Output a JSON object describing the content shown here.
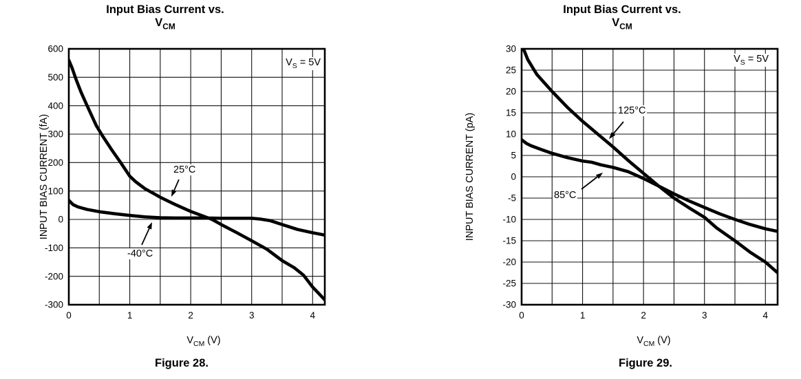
{
  "page": {
    "background": "#ffffff",
    "ink": "#000000"
  },
  "labels": {
    "vcm_base": "V",
    "vcm_sub": "CM",
    "vcm_unit_suffix": " (V)",
    "vs_base": "V",
    "vs_sub": "S",
    "vs_rest": " = 5V"
  },
  "chart_data": [
    {
      "type": "line",
      "figure": "Figure 28.",
      "title": "Input Bias Current vs. VCM",
      "title_lines": [
        "Input Bias Current vs.",
        "VCM"
      ],
      "xlabel": "VCM (V)",
      "ylabel": "INPUT BIAS CURRENT (fA)",
      "annotation": "VS = 5V",
      "grid": true,
      "legend": "inline-labels-with-arrows",
      "xlim": [
        0,
        4.2
      ],
      "ylim": [
        -300,
        600
      ],
      "x_gridline_step": 0.5,
      "x_tick_labels": [
        0,
        1,
        2,
        3,
        4
      ],
      "y_ticks": [
        600,
        500,
        400,
        300,
        200,
        100,
        0,
        -100,
        -200,
        -300
      ],
      "series": [
        {
          "name": "25c",
          "label": "25°C",
          "points": [
            [
              0,
              560
            ],
            [
              0.05,
              535
            ],
            [
              0.12,
              492
            ],
            [
              0.2,
              448
            ],
            [
              0.3,
              400
            ],
            [
              0.45,
              330
            ],
            [
              0.55,
              295
            ],
            [
              0.7,
              246
            ],
            [
              0.85,
              200
            ],
            [
              1.0,
              152
            ],
            [
              1.1,
              132
            ],
            [
              1.25,
              108
            ],
            [
              1.4,
              90
            ],
            [
              1.5,
              78
            ],
            [
              1.75,
              52
            ],
            [
              2.0,
              28
            ],
            [
              2.2,
              12
            ],
            [
              2.35,
              0
            ],
            [
              2.5,
              -18
            ],
            [
              2.75,
              -46
            ],
            [
              3.0,
              -75
            ],
            [
              3.25,
              -105
            ],
            [
              3.5,
              -145
            ],
            [
              3.7,
              -170
            ],
            [
              3.85,
              -196
            ],
            [
              4.0,
              -238
            ],
            [
              4.1,
              -260
            ],
            [
              4.2,
              -283
            ]
          ]
        },
        {
          "name": "minus40c",
          "label": "-40°C",
          "points": [
            [
              0,
              67
            ],
            [
              0.07,
              52
            ],
            [
              0.15,
              44
            ],
            [
              0.3,
              35
            ],
            [
              0.5,
              27
            ],
            [
              0.75,
              20
            ],
            [
              1.0,
              14
            ],
            [
              1.25,
              9
            ],
            [
              1.5,
              6
            ],
            [
              1.75,
              5
            ],
            [
              2.0,
              5
            ],
            [
              2.25,
              5
            ],
            [
              2.5,
              4
            ],
            [
              2.75,
              4
            ],
            [
              3.0,
              4
            ],
            [
              3.15,
              1
            ],
            [
              3.3,
              -4
            ],
            [
              3.5,
              -18
            ],
            [
              3.75,
              -35
            ],
            [
              4.0,
              -47
            ],
            [
              4.2,
              -55
            ]
          ]
        }
      ]
    },
    {
      "type": "line",
      "figure": "Figure 29.",
      "title": "Input Bias Current vs. VCM",
      "title_lines": [
        "Input Bias Current vs.",
        "VCM"
      ],
      "xlabel": "VCM (V)",
      "ylabel": "INPUT BIAS CURRENT (pA)",
      "annotation": "VS = 5V",
      "grid": true,
      "legend": "inline-labels-with-arrows",
      "xlim": [
        0,
        4.2
      ],
      "ylim": [
        -30,
        30
      ],
      "x_gridline_step": 0.5,
      "x_tick_labels": [
        0,
        1,
        2,
        3,
        4
      ],
      "y_ticks": [
        30,
        25,
        20,
        15,
        10,
        5,
        0,
        -5,
        -10,
        -15,
        -20,
        -25,
        -30
      ],
      "series": [
        {
          "name": "125c",
          "label": "125°C",
          "points": [
            [
              0.03,
              30
            ],
            [
              0.1,
              27.5
            ],
            [
              0.25,
              24
            ],
            [
              0.5,
              20
            ],
            [
              0.75,
              16.3
            ],
            [
              1.0,
              13
            ],
            [
              1.25,
              10
            ],
            [
              1.5,
              7
            ],
            [
              1.75,
              3.8
            ],
            [
              2.0,
              0.8
            ],
            [
              2.25,
              -2.2
            ],
            [
              2.5,
              -5
            ],
            [
              2.75,
              -7.3
            ],
            [
              3.0,
              -9.5
            ],
            [
              3.2,
              -12
            ],
            [
              3.35,
              -13.5
            ],
            [
              3.5,
              -15
            ],
            [
              3.75,
              -17.7
            ],
            [
              4.0,
              -20
            ],
            [
              4.2,
              -22.5
            ]
          ]
        },
        {
          "name": "85c",
          "label": "85°C",
          "points": [
            [
              0,
              8.7
            ],
            [
              0.08,
              7.8
            ],
            [
              0.15,
              7.3
            ],
            [
              0.3,
              6.5
            ],
            [
              0.5,
              5.5
            ],
            [
              0.75,
              4.5
            ],
            [
              1.0,
              3.7
            ],
            [
              1.15,
              3.4
            ],
            [
              1.3,
              2.8
            ],
            [
              1.5,
              2.2
            ],
            [
              1.75,
              1.2
            ],
            [
              2.0,
              -0.4
            ],
            [
              2.25,
              -2.2
            ],
            [
              2.5,
              -4
            ],
            [
              2.75,
              -5.7
            ],
            [
              3.0,
              -7.2
            ],
            [
              3.25,
              -8.7
            ],
            [
              3.5,
              -10
            ],
            [
              3.75,
              -11.2
            ],
            [
              4.0,
              -12.2
            ],
            [
              4.2,
              -12.8
            ]
          ]
        }
      ]
    }
  ]
}
